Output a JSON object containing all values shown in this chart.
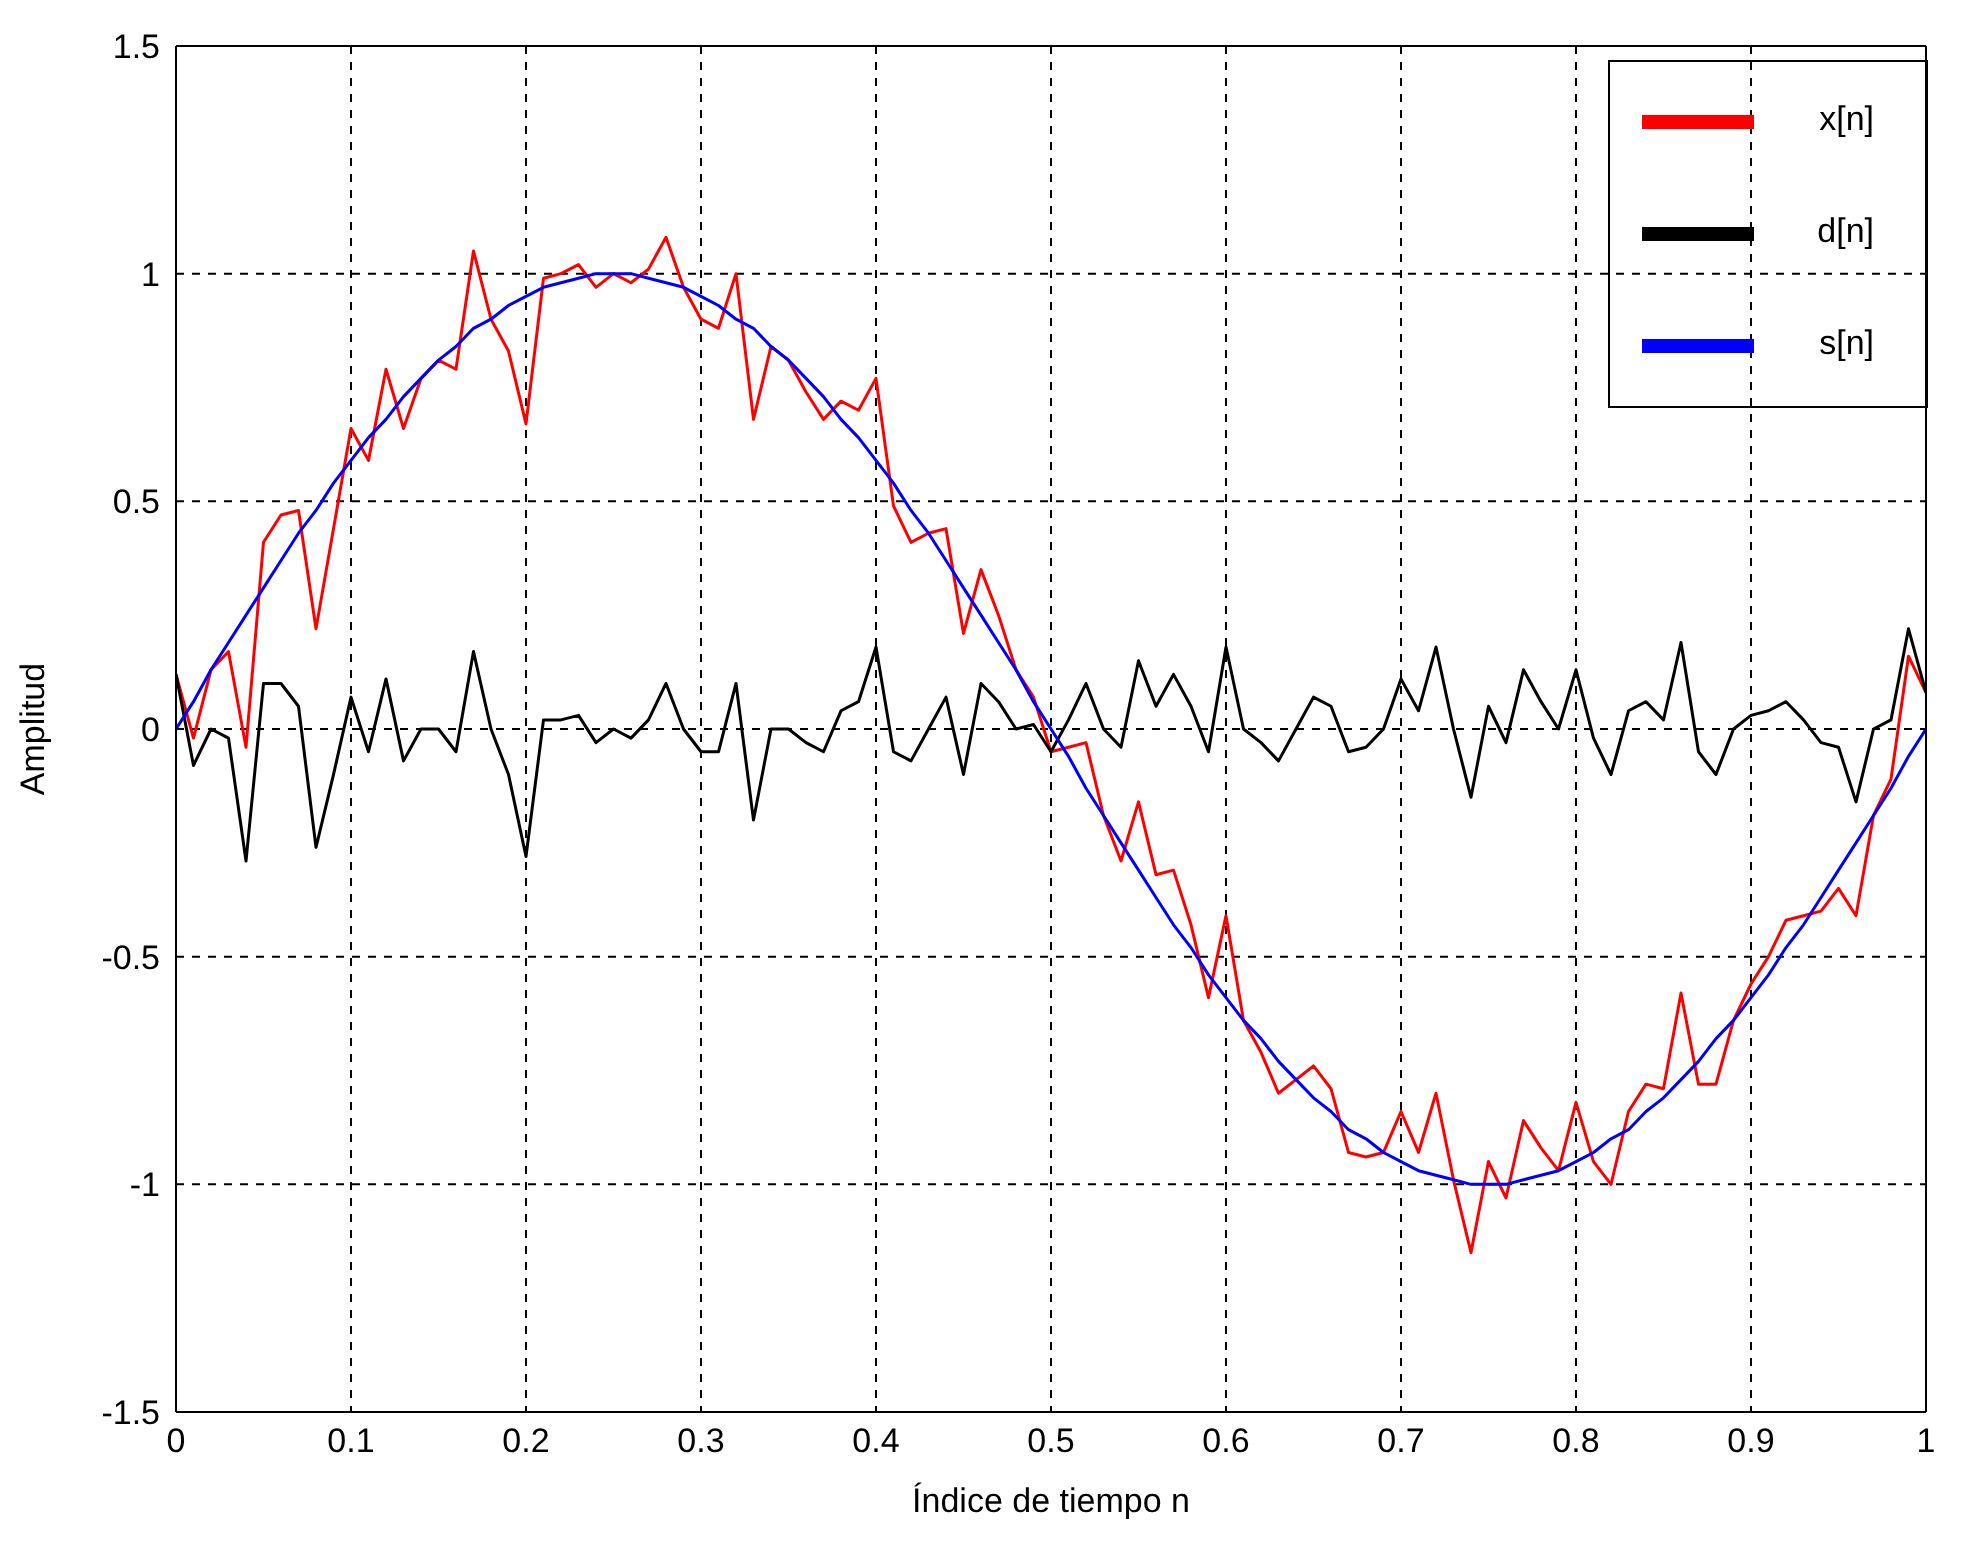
{
  "chart_data": {
    "type": "line",
    "xlabel": "Índice de tiempo n",
    "ylabel": "Amplitud",
    "x": [
      0,
      0.01,
      0.02,
      0.03,
      0.04,
      0.05,
      0.06,
      0.07,
      0.08,
      0.09,
      0.1,
      0.11,
      0.12,
      0.13,
      0.14,
      0.15,
      0.16,
      0.17,
      0.18,
      0.19,
      0.2,
      0.21,
      0.22,
      0.23,
      0.24,
      0.25,
      0.26,
      0.27,
      0.28,
      0.29,
      0.3,
      0.31,
      0.32,
      0.33,
      0.34,
      0.35,
      0.36,
      0.37,
      0.38,
      0.39,
      0.4,
      0.41,
      0.42,
      0.43,
      0.44,
      0.45,
      0.46,
      0.47,
      0.48,
      0.49,
      0.5,
      0.51,
      0.52,
      0.53,
      0.54,
      0.55,
      0.56,
      0.57,
      0.58,
      0.59,
      0.6,
      0.61,
      0.62,
      0.63,
      0.64,
      0.65,
      0.66,
      0.67,
      0.68,
      0.69,
      0.7,
      0.71,
      0.72,
      0.73,
      0.74,
      0.75,
      0.76,
      0.77,
      0.78,
      0.79,
      0.8,
      0.81,
      0.82,
      0.83,
      0.84,
      0.85,
      0.86,
      0.87,
      0.88,
      0.89,
      0.9,
      0.91,
      0.92,
      0.93,
      0.94,
      0.95,
      0.96,
      0.97,
      0.98,
      0.99,
      1
    ],
    "series": [
      {
        "name": "x[n]",
        "color": "#ff0000",
        "values": [
          0.12,
          -0.02,
          0.13,
          0.17,
          -0.04,
          0.41,
          0.47,
          0.48,
          0.22,
          0.44,
          0.66,
          0.59,
          0.79,
          0.66,
          0.77,
          0.81,
          0.79,
          1.05,
          0.9,
          0.83,
          0.67,
          0.99,
          1.0,
          1.02,
          0.97,
          1.0,
          0.98,
          1.01,
          1.08,
          0.97,
          0.9,
          0.88,
          1.0,
          0.68,
          0.84,
          0.81,
          0.74,
          0.68,
          0.72,
          0.7,
          0.77,
          0.49,
          0.41,
          0.43,
          0.44,
          0.21,
          0.35,
          0.25,
          0.13,
          0.07,
          -0.05,
          -0.04,
          -0.03,
          -0.19,
          -0.29,
          -0.16,
          -0.32,
          -0.31,
          -0.43,
          -0.59,
          -0.41,
          -0.64,
          -0.71,
          -0.8,
          -0.77,
          -0.74,
          -0.79,
          -0.93,
          -0.94,
          -0.93,
          -0.84,
          -0.93,
          -0.8,
          -0.99,
          -1.15,
          -0.95,
          -1.03,
          -0.86,
          -0.92,
          -0.97,
          -0.82,
          -0.95,
          -1.0,
          -0.84,
          -0.78,
          -0.79,
          -0.58,
          -0.78,
          -0.78,
          -0.64,
          -0.56,
          -0.5,
          -0.42,
          -0.41,
          -0.4,
          -0.35,
          -0.41,
          -0.19,
          -0.11,
          0.16,
          0.08
        ]
      },
      {
        "name": "d[n]",
        "color": "#000000",
        "values": [
          0.12,
          -0.08,
          0.0,
          -0.02,
          -0.29,
          0.1,
          0.1,
          0.05,
          -0.26,
          -0.1,
          0.07,
          -0.05,
          0.11,
          -0.07,
          0.0,
          0.0,
          -0.05,
          0.17,
          0.0,
          -0.1,
          -0.28,
          0.02,
          0.02,
          0.03,
          -0.03,
          0.0,
          -0.02,
          0.02,
          0.1,
          0.0,
          -0.05,
          -0.05,
          0.1,
          -0.2,
          0.0,
          0.0,
          -0.03,
          -0.05,
          0.04,
          0.06,
          0.18,
          -0.05,
          -0.07,
          0.0,
          0.07,
          -0.1,
          0.1,
          0.06,
          0.0,
          0.01,
          -0.05,
          0.02,
          0.1,
          0.0,
          -0.04,
          0.15,
          0.05,
          0.12,
          0.05,
          -0.05,
          0.18,
          0.0,
          -0.03,
          -0.07,
          0.0,
          0.07,
          0.05,
          -0.05,
          -0.04,
          0.0,
          0.11,
          0.04,
          0.18,
          0.0,
          -0.15,
          0.05,
          -0.03,
          0.13,
          0.06,
          0.0,
          0.13,
          -0.02,
          -0.1,
          0.04,
          0.06,
          0.02,
          0.19,
          -0.05,
          -0.1,
          0.0,
          0.03,
          0.04,
          0.06,
          0.02,
          -0.03,
          -0.04,
          -0.16,
          0.0,
          0.02,
          0.22,
          0.08
        ]
      },
      {
        "name": "s[n]",
        "color": "#0000ff",
        "values": [
          0,
          0.06,
          0.13,
          0.19,
          0.25,
          0.31,
          0.37,
          0.43,
          0.48,
          0.54,
          0.59,
          0.64,
          0.68,
          0.73,
          0.77,
          0.81,
          0.84,
          0.88,
          0.9,
          0.93,
          0.95,
          0.97,
          0.98,
          0.99,
          1.0,
          1.0,
          1.0,
          0.99,
          0.98,
          0.97,
          0.95,
          0.93,
          0.9,
          0.88,
          0.84,
          0.81,
          0.77,
          0.73,
          0.68,
          0.64,
          0.59,
          0.54,
          0.48,
          0.43,
          0.37,
          0.31,
          0.25,
          0.19,
          0.13,
          0.06,
          0,
          -0.06,
          -0.13,
          -0.19,
          -0.25,
          -0.31,
          -0.37,
          -0.43,
          -0.48,
          -0.54,
          -0.59,
          -0.64,
          -0.68,
          -0.73,
          -0.77,
          -0.81,
          -0.84,
          -0.88,
          -0.9,
          -0.93,
          -0.95,
          -0.97,
          -0.98,
          -0.99,
          -1.0,
          -1.0,
          -1.0,
          -0.99,
          -0.98,
          -0.97,
          -0.95,
          -0.93,
          -0.9,
          -0.88,
          -0.84,
          -0.81,
          -0.77,
          -0.73,
          -0.68,
          -0.64,
          -0.59,
          -0.54,
          -0.48,
          -0.43,
          -0.37,
          -0.31,
          -0.25,
          -0.19,
          -0.13,
          -0.06,
          0
        ]
      }
    ],
    "xlim": [
      0,
      1
    ],
    "xticks": [
      0,
      0.1,
      0.2,
      0.3,
      0.4,
      0.5,
      0.6,
      0.7,
      0.8,
      0.9,
      1
    ],
    "ylim": [
      -1.5,
      1.5
    ],
    "yticks": [
      -1.5,
      -1,
      -0.5,
      0,
      0.5,
      1,
      1.5
    ],
    "grid": true,
    "legend": "top right",
    "marker": "none",
    "line_style": "solid"
  }
}
